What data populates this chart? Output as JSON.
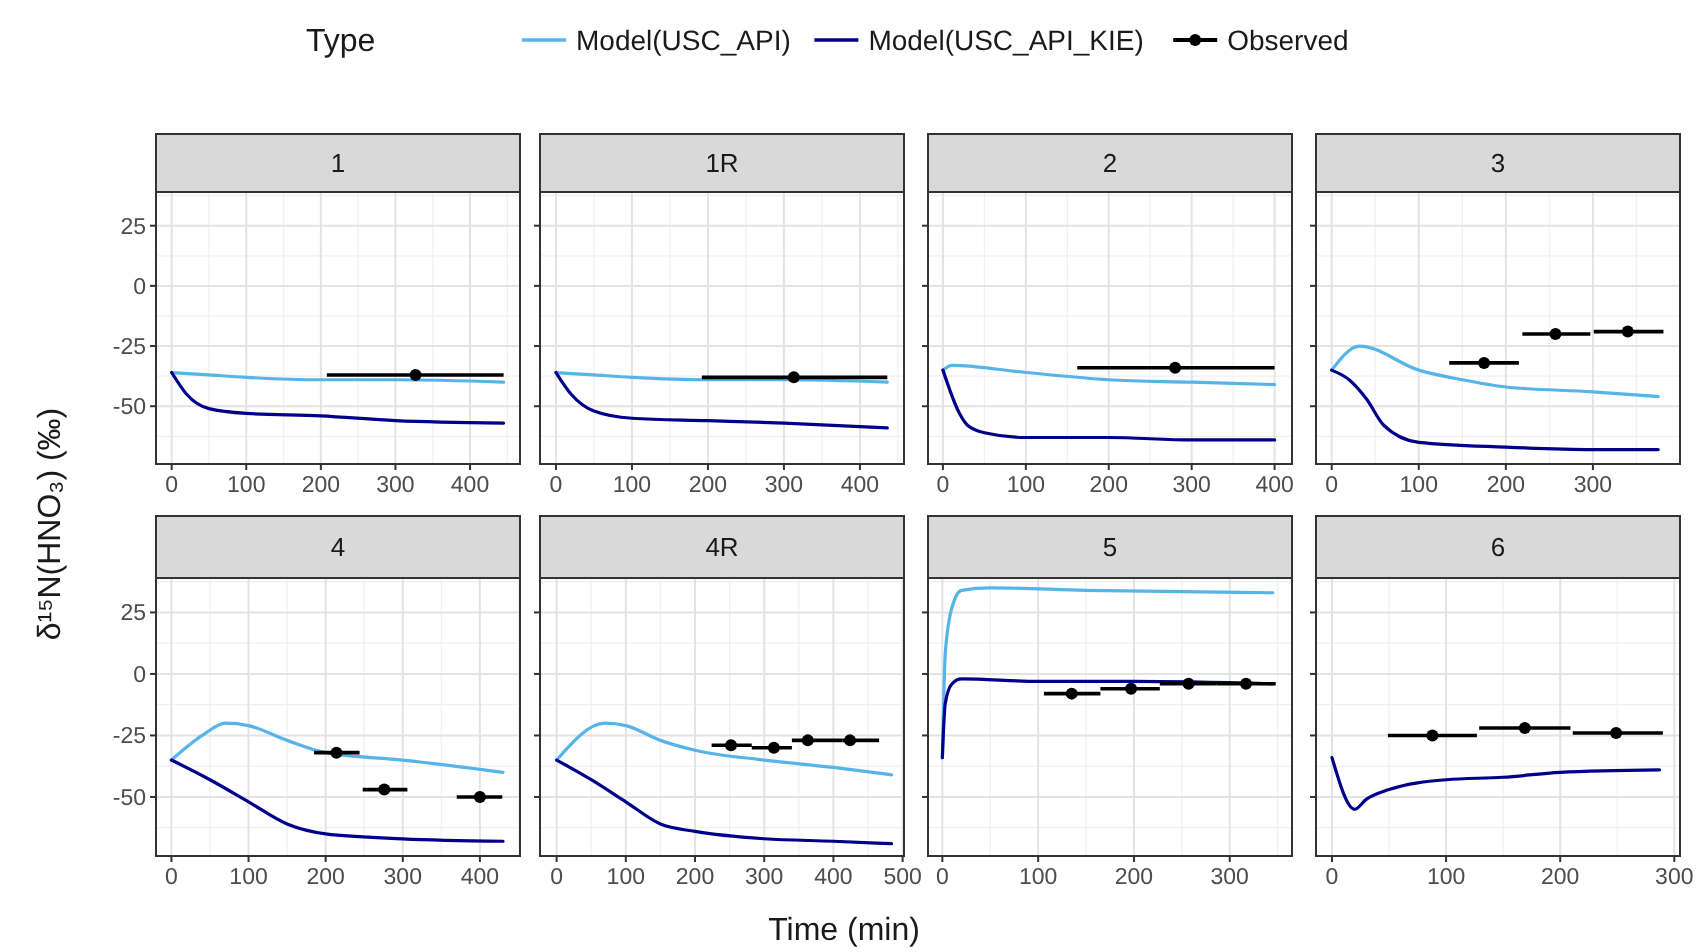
{
  "chart_data": [
    {
      "type": "line",
      "title": "1",
      "legend_title": "Type",
      "legend": "top",
      "ylabel": "δ¹⁵N(HNO₃) (‰)",
      "grid": true,
      "xlim": [
        -21,
        467
      ],
      "ylim": [
        -74,
        39
      ],
      "xticks": [
        0,
        100,
        200,
        300,
        400
      ],
      "yticks": [
        -50,
        -25,
        0,
        25
      ],
      "series": [
        {
          "name": "Model(USC_API)",
          "color": "#56b4e9",
          "x": [
            0,
            50,
            100,
            200,
            300,
            445
          ],
          "values": [
            -36,
            -37,
            -38,
            -39,
            -39,
            -40
          ]
        },
        {
          "name": "Model(USC_API_KIE)",
          "color": "#00008b",
          "x": [
            0,
            20,
            50,
            100,
            200,
            300,
            445
          ],
          "values": [
            -36,
            -45,
            -51,
            -53,
            -54,
            -56,
            -57
          ]
        },
        {
          "name": "Observed",
          "type": "scatter",
          "marker": "circle",
          "color": "#000000",
          "x": [
            327
          ],
          "values": [
            -37
          ],
          "xerrors": [
            [
              208,
              445
            ]
          ]
        }
      ]
    },
    {
      "type": "line",
      "title": "1R",
      "grid": true,
      "tick_labels": "x",
      "xlim": [
        -21,
        458
      ],
      "ylim": [
        -74,
        39
      ],
      "xticks": [
        0,
        100,
        200,
        300,
        400
      ],
      "yticks": [
        -50,
        -25,
        0,
        25
      ],
      "series": [
        {
          "name": "Model(USC_API)",
          "color": "#56b4e9",
          "x": [
            0,
            50,
            100,
            200,
            300,
            436
          ],
          "values": [
            -36,
            -37,
            -38,
            -39,
            -39,
            -40
          ]
        },
        {
          "name": "Model(USC_API_KIE)",
          "color": "#00008b",
          "x": [
            0,
            20,
            50,
            100,
            200,
            300,
            436
          ],
          "values": [
            -36,
            -45,
            -52,
            -55,
            -56,
            -57,
            -59
          ]
        },
        {
          "name": "Observed",
          "type": "scatter",
          "marker": "circle",
          "color": "#000000",
          "x": [
            313
          ],
          "values": [
            -38
          ],
          "xerrors": [
            [
              192,
              436
            ]
          ]
        }
      ]
    },
    {
      "type": "line",
      "title": "2",
      "grid": true,
      "tick_labels": "x",
      "xlim": [
        -18,
        421
      ],
      "ylim": [
        -74,
        39
      ],
      "xticks": [
        0,
        100,
        200,
        300,
        400
      ],
      "yticks": [
        -50,
        -25,
        0,
        25
      ],
      "series": [
        {
          "name": "Model(USC_API)",
          "color": "#56b4e9",
          "x": [
            0,
            11,
            100,
            200,
            300,
            400
          ],
          "values": [
            -35,
            -33,
            -36,
            -39,
            -40,
            -41
          ]
        },
        {
          "name": "Model(USC_API_KIE)",
          "color": "#00008b",
          "x": [
            0,
            20,
            30,
            50,
            100,
            200,
            300,
            400
          ],
          "values": [
            -35,
            -53,
            -58,
            -61,
            -63,
            -63,
            -64,
            -64
          ]
        },
        {
          "name": "Observed",
          "type": "scatter",
          "marker": "circle",
          "color": "#000000",
          "x": [
            280
          ],
          "values": [
            -34
          ],
          "xerrors": [
            [
              162,
              400
            ]
          ]
        }
      ]
    },
    {
      "type": "line",
      "title": "3",
      "grid": true,
      "tick_labels": "x",
      "xlim": [
        -18,
        400
      ],
      "ylim": [
        -74,
        39
      ],
      "xticks": [
        0,
        100,
        200,
        300
      ],
      "yticks": [
        -50,
        -25,
        0,
        25
      ],
      "series": [
        {
          "name": "Model(USC_API)",
          "color": "#56b4e9",
          "x": [
            0,
            32,
            100,
            150,
            200,
            300,
            375
          ],
          "values": [
            -35,
            -25,
            -35,
            -39,
            -42,
            -44,
            -46
          ]
        },
        {
          "name": "Model(USC_API_KIE)",
          "color": "#00008b",
          "x": [
            0,
            20,
            40,
            60,
            100,
            200,
            300,
            375
          ],
          "values": [
            -35,
            -39,
            -47,
            -58,
            -65,
            -67,
            -68,
            -68
          ]
        },
        {
          "name": "Observed",
          "type": "scatter",
          "marker": "circle",
          "color": "#000000",
          "x": [
            175,
            257,
            340
          ],
          "values": [
            -32,
            -20,
            -19
          ],
          "xerrors": [
            [
              135,
              215
            ],
            [
              219,
              297
            ],
            [
              301,
              381
            ]
          ]
        }
      ]
    },
    {
      "type": "line",
      "title": "4",
      "grid": true,
      "xlim": [
        -20,
        452
      ],
      "ylim": [
        -74,
        39
      ],
      "xticks": [
        0,
        100,
        200,
        300,
        400
      ],
      "yticks": [
        -50,
        -25,
        0,
        25
      ],
      "series": [
        {
          "name": "Model(USC_API)",
          "color": "#56b4e9",
          "x": [
            0,
            40,
            70,
            100,
            150,
            200,
            300,
            430
          ],
          "values": [
            -35,
            -25,
            -20,
            -21,
            -27,
            -32,
            -35,
            -40
          ]
        },
        {
          "name": "Model(USC_API_KIE)",
          "color": "#00008b",
          "x": [
            0,
            50,
            100,
            150,
            200,
            300,
            430
          ],
          "values": [
            -35,
            -43,
            -52,
            -61,
            -65,
            -67,
            -68
          ]
        },
        {
          "name": "Observed",
          "type": "scatter",
          "marker": "circle",
          "color": "#000000",
          "x": [
            214,
            276,
            400
          ],
          "values": [
            -32,
            -47,
            -50
          ],
          "xerrors": [
            [
              185,
              244
            ],
            [
              248,
              306
            ],
            [
              370,
              429
            ]
          ]
        }
      ]
    },
    {
      "type": "line",
      "title": "4R",
      "xlabel": "Time (min)",
      "grid": true,
      "tick_labels": "x",
      "xlim": [
        -24,
        502
      ],
      "ylim": [
        -74,
        39
      ],
      "xticks": [
        0,
        100,
        200,
        300,
        400,
        500
      ],
      "yticks": [
        -50,
        -25,
        0,
        25
      ],
      "series": [
        {
          "name": "Model(USC_API)",
          "color": "#56b4e9",
          "x": [
            0,
            70,
            100,
            150,
            200,
            300,
            400,
            484
          ],
          "values": [
            -35,
            -20,
            -21,
            -27,
            -31,
            -35,
            -38,
            -41
          ]
        },
        {
          "name": "Model(USC_API_KIE)",
          "color": "#00008b",
          "x": [
            0,
            50,
            100,
            150,
            200,
            300,
            400,
            484
          ],
          "values": [
            -35,
            -43,
            -52,
            -61,
            -64,
            -67,
            -68,
            -69
          ]
        },
        {
          "name": "Observed",
          "type": "scatter",
          "marker": "circle",
          "color": "#000000",
          "x": [
            252,
            314,
            363,
            424
          ],
          "values": [
            -29,
            -30,
            -27,
            -27
          ],
          "xerrors": [
            [
              224,
              282
            ],
            [
              282,
              340
            ],
            [
              340,
              413
            ],
            [
              413,
              466
            ]
          ]
        }
      ]
    },
    {
      "type": "line",
      "title": "5",
      "grid": true,
      "tick_labels": "x",
      "xlim": [
        -15,
        365
      ],
      "ylim": [
        -74,
        39
      ],
      "xticks": [
        0,
        100,
        200,
        300
      ],
      "yticks": [
        -50,
        -25,
        0,
        25
      ],
      "series": [
        {
          "name": "Model(USC_API)",
          "color": "#56b4e9",
          "x": [
            0,
            3,
            10,
            20,
            50,
            150,
            345
          ],
          "values": [
            -34,
            8,
            27,
            34,
            35,
            34,
            33
          ]
        },
        {
          "name": "Model(USC_API_KIE)",
          "color": "#00008b",
          "x": [
            0,
            3,
            10,
            20,
            100,
            200,
            345
          ],
          "values": [
            -34,
            -12,
            -4,
            -2,
            -3,
            -3,
            -4
          ]
        },
        {
          "name": "Observed",
          "type": "scatter",
          "marker": "circle",
          "color": "#000000",
          "x": [
            135,
            197,
            257,
            317
          ],
          "values": [
            -8,
            -6,
            -4,
            -4
          ],
          "xerrors": [
            [
              106,
              165
            ],
            [
              165,
              227
            ],
            [
              227,
              286
            ],
            [
              286,
              348
            ]
          ]
        }
      ]
    },
    {
      "type": "line",
      "title": "6",
      "grid": true,
      "tick_labels": "x",
      "xlim": [
        -14,
        305
      ],
      "ylim": [
        -74,
        39
      ],
      "xticks": [
        0,
        100,
        200,
        300
      ],
      "yticks": [
        -50,
        -25,
        0,
        25
      ],
      "series": [
        {
          "name": "Model(USC_API_KIE)",
          "color": "#00008b",
          "x": [
            0,
            20,
            30,
            50,
            100,
            150,
            200,
            287
          ],
          "values": [
            -34,
            -55,
            -51,
            -47,
            -43,
            -42,
            -40,
            -39
          ]
        },
        {
          "name": "Observed",
          "type": "scatter",
          "marker": "circle",
          "color": "#000000",
          "x": [
            88,
            169,
            249
          ],
          "values": [
            -25,
            -22,
            -24
          ],
          "xerrors": [
            [
              49,
              127
            ],
            [
              129,
              209
            ],
            [
              211,
              290
            ]
          ]
        }
      ]
    }
  ]
}
